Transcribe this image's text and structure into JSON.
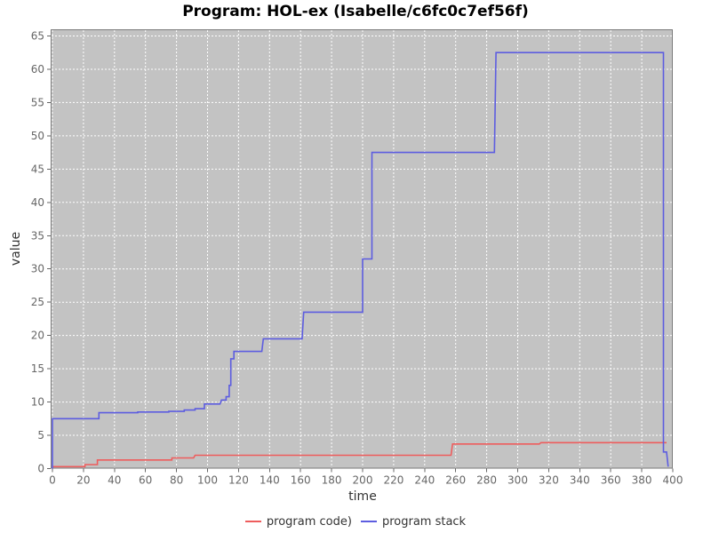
{
  "title": "Program: HOL-ex (Isabelle/c6fc0c7ef56f)",
  "chart_data": {
    "type": "line",
    "step_style": true,
    "title": "Program: HOL-ex (Isabelle/c6fc0c7ef56f)",
    "xlabel": "time",
    "ylabel": "value",
    "xlim": [
      0,
      400
    ],
    "ylim": [
      0,
      65
    ],
    "x_tick_step": 20,
    "y_tick_step": 5,
    "grid": true,
    "legend_position": "bottom",
    "plot_bg_color": "#c3c3c3",
    "grid_color": "#ffffff",
    "border_color": "#7a7a7a",
    "tick_label_color": "#666666",
    "series": [
      {
        "name": "program code)",
        "color": "#ee5d5d",
        "points": [
          [
            0,
            0.3
          ],
          [
            21,
            0.3
          ],
          [
            21,
            0.6
          ],
          [
            29,
            0.6
          ],
          [
            29,
            1.3
          ],
          [
            77,
            1.3
          ],
          [
            77,
            1.6
          ],
          [
            91,
            1.6
          ],
          [
            92,
            2.0
          ],
          [
            257,
            2.0
          ],
          [
            258,
            3.7
          ],
          [
            314,
            3.7
          ],
          [
            315,
            3.9
          ],
          [
            396,
            3.9
          ]
        ]
      },
      {
        "name": "program stack",
        "color": "#5d5de0",
        "points": [
          [
            0,
            0
          ],
          [
            0,
            7.5
          ],
          [
            30,
            7.5
          ],
          [
            30,
            8.4
          ],
          [
            55,
            8.4
          ],
          [
            55,
            8.5
          ],
          [
            75,
            8.5
          ],
          [
            75,
            8.6
          ],
          [
            85,
            8.6
          ],
          [
            85,
            8.8
          ],
          [
            92,
            8.8
          ],
          [
            92,
            9.0
          ],
          [
            98,
            9.0
          ],
          [
            98,
            9.7
          ],
          [
            108,
            9.7
          ],
          [
            109,
            10.3
          ],
          [
            112,
            10.3
          ],
          [
            112,
            10.8
          ],
          [
            114,
            10.8
          ],
          [
            114,
            12.5
          ],
          [
            115,
            12.5
          ],
          [
            115,
            16.5
          ],
          [
            117,
            16.5
          ],
          [
            117,
            17.6
          ],
          [
            135,
            17.6
          ],
          [
            136,
            19.5
          ],
          [
            161,
            19.5
          ],
          [
            162,
            23.5
          ],
          [
            200,
            23.5
          ],
          [
            200,
            31.5
          ],
          [
            206,
            31.5
          ],
          [
            206,
            47.5
          ],
          [
            285,
            47.5
          ],
          [
            286,
            62.5
          ],
          [
            394,
            62.5
          ],
          [
            394,
            2.5
          ],
          [
            396,
            2.5
          ],
          [
            397,
            0.3
          ]
        ]
      }
    ]
  }
}
